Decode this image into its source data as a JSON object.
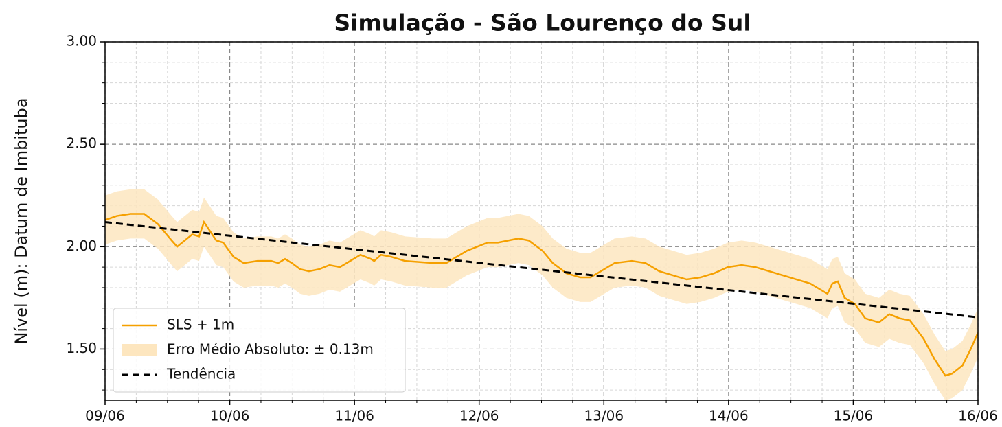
{
  "chart_data": {
    "type": "line",
    "title": "Simulação - São Lourenço do Sul",
    "y_label": "Nível (m): Datum de Imbituba",
    "xlim": [
      9,
      16
    ],
    "ylim": [
      1.25,
      3.0
    ],
    "xticks": [
      {
        "value": 9,
        "label": "09/06"
      },
      {
        "value": 10,
        "label": "10/06"
      },
      {
        "value": 11,
        "label": "11/06"
      },
      {
        "value": 12,
        "label": "12/06"
      },
      {
        "value": 13,
        "label": "13/06"
      },
      {
        "value": 14,
        "label": "14/06"
      },
      {
        "value": 15,
        "label": "15/06"
      },
      {
        "value": 16,
        "label": "16/06"
      }
    ],
    "yticks": [
      {
        "value": 1.5,
        "label": "1.50"
      },
      {
        "value": 2.0,
        "label": "2.00"
      },
      {
        "value": 2.5,
        "label": "2.50"
      },
      {
        "value": 3.0,
        "label": "3.00"
      }
    ],
    "xminorticks": [
      9.25,
      9.5,
      9.75,
      10.25,
      10.5,
      10.75,
      11.25,
      11.5,
      11.75,
      12.25,
      12.5,
      12.75,
      13.25,
      13.5,
      13.75,
      14.25,
      14.5,
      14.75,
      15.25,
      15.5,
      15.75
    ],
    "yminorticks": [
      1.3,
      1.4,
      1.6,
      1.7,
      1.8,
      1.9,
      2.1,
      2.2,
      2.3,
      2.4,
      2.6,
      2.7,
      2.8,
      2.9
    ],
    "grid": true,
    "legend": "lower left",
    "x": [
      9.0,
      9.094,
      9.204,
      9.314,
      9.424,
      9.534,
      9.578,
      9.699,
      9.754,
      9.793,
      9.892,
      9.947,
      10.03,
      10.112,
      10.222,
      10.333,
      10.388,
      10.443,
      10.498,
      10.564,
      10.635,
      10.718,
      10.8,
      10.883,
      10.965,
      11.048,
      11.131,
      11.158,
      11.213,
      11.296,
      11.406,
      11.627,
      11.737,
      11.819,
      11.902,
      11.985,
      12.067,
      12.15,
      12.232,
      12.315,
      12.398,
      12.508,
      12.59,
      12.7,
      12.811,
      12.893,
      12.976,
      13.086,
      13.224,
      13.334,
      13.444,
      13.554,
      13.664,
      13.774,
      13.884,
      13.994,
      14.105,
      14.215,
      14.38,
      14.545,
      14.655,
      14.765,
      14.793,
      14.832,
      14.876,
      14.931,
      15.013,
      15.096,
      15.206,
      15.289,
      15.371,
      15.454,
      15.564,
      15.652,
      15.738,
      15.793,
      15.876,
      15.942,
      16.0
    ],
    "series": [
      {
        "name": "SLS + 1m",
        "kind": "line",
        "color": "#f5a000",
        "values": [
          2.13,
          2.15,
          2.16,
          2.16,
          2.11,
          2.03,
          2.0,
          2.06,
          2.05,
          2.12,
          2.03,
          2.02,
          1.95,
          1.92,
          1.93,
          1.93,
          1.92,
          1.94,
          1.92,
          1.89,
          1.88,
          1.89,
          1.91,
          1.9,
          1.93,
          1.96,
          1.94,
          1.93,
          1.96,
          1.95,
          1.93,
          1.92,
          1.92,
          1.95,
          1.98,
          2.0,
          2.02,
          2.02,
          2.03,
          2.04,
          2.03,
          1.98,
          1.92,
          1.87,
          1.85,
          1.85,
          1.88,
          1.92,
          1.93,
          1.92,
          1.88,
          1.86,
          1.84,
          1.85,
          1.87,
          1.9,
          1.91,
          1.9,
          1.87,
          1.84,
          1.82,
          1.78,
          1.77,
          1.82,
          1.83,
          1.75,
          1.72,
          1.65,
          1.63,
          1.67,
          1.65,
          1.64,
          1.55,
          1.45,
          1.37,
          1.38,
          1.42,
          1.5,
          1.58
        ]
      },
      {
        "name": "Erro Médio Absoluto: ± 0.13m",
        "kind": "band",
        "color": "#fde6bf",
        "upper": [
          2.25,
          2.27,
          2.28,
          2.28,
          2.23,
          2.15,
          2.12,
          2.18,
          2.17,
          2.24,
          2.15,
          2.14,
          2.07,
          2.04,
          2.05,
          2.05,
          2.04,
          2.06,
          2.04,
          2.01,
          2.0,
          2.01,
          2.03,
          2.02,
          2.05,
          2.08,
          2.06,
          2.05,
          2.08,
          2.07,
          2.05,
          2.04,
          2.04,
          2.07,
          2.1,
          2.12,
          2.14,
          2.14,
          2.15,
          2.16,
          2.15,
          2.1,
          2.04,
          1.99,
          1.97,
          1.97,
          2.0,
          2.04,
          2.05,
          2.04,
          2.0,
          1.98,
          1.96,
          1.97,
          1.99,
          2.02,
          2.03,
          2.02,
          1.99,
          1.96,
          1.94,
          1.9,
          1.89,
          1.94,
          1.95,
          1.87,
          1.84,
          1.77,
          1.75,
          1.79,
          1.77,
          1.76,
          1.67,
          1.57,
          1.49,
          1.5,
          1.54,
          1.62,
          1.7
        ],
        "lower": [
          2.01,
          2.03,
          2.04,
          2.04,
          1.99,
          1.91,
          1.88,
          1.94,
          1.93,
          2.0,
          1.91,
          1.9,
          1.83,
          1.8,
          1.81,
          1.81,
          1.8,
          1.82,
          1.8,
          1.77,
          1.76,
          1.77,
          1.79,
          1.78,
          1.81,
          1.84,
          1.82,
          1.81,
          1.84,
          1.83,
          1.81,
          1.8,
          1.8,
          1.83,
          1.86,
          1.88,
          1.9,
          1.9,
          1.91,
          1.92,
          1.91,
          1.86,
          1.8,
          1.75,
          1.73,
          1.73,
          1.76,
          1.8,
          1.81,
          1.8,
          1.76,
          1.74,
          1.72,
          1.73,
          1.75,
          1.78,
          1.79,
          1.78,
          1.75,
          1.72,
          1.7,
          1.66,
          1.65,
          1.7,
          1.71,
          1.63,
          1.6,
          1.53,
          1.51,
          1.55,
          1.53,
          1.52,
          1.43,
          1.33,
          1.25,
          1.26,
          1.3,
          1.38,
          1.46
        ]
      },
      {
        "name": "Tendência",
        "kind": "line",
        "dashed": true,
        "color": "#000000",
        "x": [
          9,
          16
        ],
        "values": [
          2.12,
          1.655
        ]
      }
    ]
  }
}
